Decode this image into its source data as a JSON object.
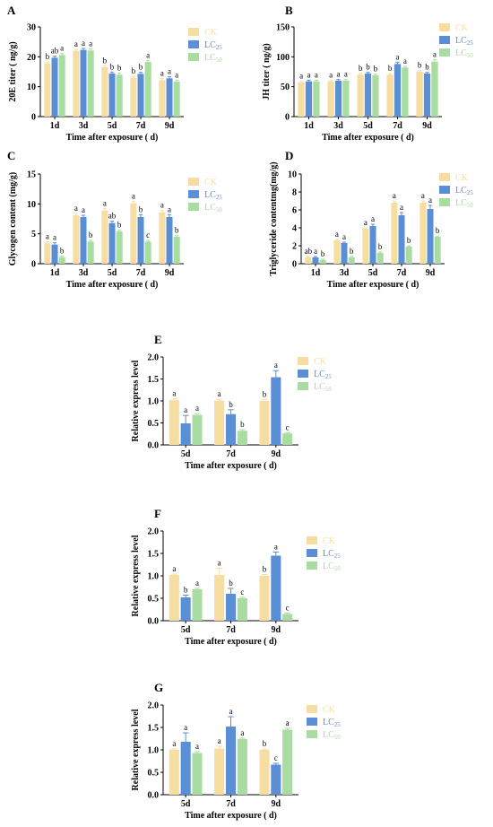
{
  "colors": {
    "CK": "#f6dda2",
    "LC25": "#5b8fd5",
    "LC50": "#a8dca0",
    "error": "#6a95cf"
  },
  "legend": [
    {
      "key": "CK",
      "base": "CK",
      "sub": ""
    },
    {
      "key": "LC25",
      "base": "LC",
      "sub": "25"
    },
    {
      "key": "LC50",
      "base": "LC",
      "sub": "50"
    }
  ],
  "chart_data": [
    {
      "panel": "A",
      "type": "bar",
      "ylabel": "20E titer ( ng/g)",
      "xlabel": "Time after exposure ( d)",
      "categories": [
        "1d",
        "3d",
        "5d",
        "7d",
        "9d"
      ],
      "ylim": [
        0,
        30
      ],
      "yticks": [
        0,
        10,
        20,
        30
      ],
      "series": [
        {
          "name": "CK",
          "values": [
            17.8,
            22.0,
            16.5,
            13.0,
            12.2
          ],
          "errors": [
            0.5,
            0.5,
            0.5,
            0.5,
            0.5
          ],
          "letters": [
            "b",
            "a",
            "b",
            "b",
            "a"
          ]
        },
        {
          "name": "LC25",
          "values": [
            19.7,
            22.3,
            14.4,
            14.3,
            12.8
          ],
          "errors": [
            0.5,
            0.5,
            0.5,
            0.5,
            0.5
          ],
          "letters": [
            "ab",
            "a",
            "b",
            "b",
            "a"
          ]
        },
        {
          "name": "LC50",
          "values": [
            20.6,
            22.1,
            14.0,
            18.3,
            11.7
          ],
          "errors": [
            0.5,
            0.5,
            0.5,
            0.5,
            0.5
          ],
          "letters": [
            "a",
            "a",
            "b",
            "a",
            "a"
          ]
        }
      ]
    },
    {
      "panel": "B",
      "type": "bar",
      "ylabel": "JH titer ( ng/g)",
      "xlabel": "Time after exposure ( d)",
      "categories": [
        "1d",
        "3d",
        "5d",
        "7d",
        "9d"
      ],
      "ylim": [
        0,
        150
      ],
      "yticks": [
        0,
        50,
        100,
        150
      ],
      "series": [
        {
          "name": "CK",
          "values": [
            57,
            59,
            70,
            70,
            75
          ],
          "errors": [
            2,
            2,
            2,
            2,
            2
          ],
          "letters": [
            "a",
            "a",
            "b",
            "b",
            "b"
          ]
        },
        {
          "name": "LC25",
          "values": [
            59,
            60,
            72,
            88,
            72
          ],
          "errors": [
            2,
            2,
            2,
            3,
            2
          ],
          "letters": [
            "a",
            "a",
            "b",
            "a",
            "b"
          ]
        },
        {
          "name": "LC50",
          "values": [
            59,
            60,
            69,
            82,
            92
          ],
          "errors": [
            2,
            2,
            2,
            2,
            3
          ],
          "letters": [
            "a",
            "a",
            "b",
            "a",
            "a"
          ]
        }
      ]
    },
    {
      "panel": "C",
      "type": "bar",
      "ylabel": "Glycogen content (mg/g)",
      "xlabel": "Time after exposure ( d)",
      "categories": [
        "1d",
        "3d",
        "5d",
        "7d",
        "9d"
      ],
      "ylim": [
        0,
        15
      ],
      "yticks": [
        0,
        5,
        10,
        15
      ],
      "series": [
        {
          "name": "CK",
          "values": [
            3.4,
            8.1,
            8.9,
            10.1,
            8.6
          ],
          "errors": [
            0.3,
            0.3,
            0.3,
            0.3,
            0.3
          ],
          "letters": [
            "a",
            "a",
            "a",
            "a",
            "a"
          ]
        },
        {
          "name": "LC25",
          "values": [
            3.2,
            7.8,
            6.8,
            7.8,
            7.8
          ],
          "errors": [
            0.3,
            0.3,
            0.3,
            0.4,
            0.4
          ],
          "letters": [
            "a",
            "a",
            "ab",
            "b",
            "a"
          ]
        },
        {
          "name": "LC50",
          "values": [
            1.1,
            3.7,
            5.4,
            3.7,
            4.5
          ],
          "errors": [
            0.2,
            0.2,
            0.2,
            0.2,
            0.2
          ],
          "letters": [
            "b",
            "b",
            "b",
            "c",
            "b"
          ]
        }
      ]
    },
    {
      "panel": "D",
      "type": "bar",
      "ylabel": "Triglyceride contentmg(mg/g)",
      "xlabel": "Time after exposure ( d)",
      "categories": [
        "1d",
        "3d",
        "5d",
        "7d",
        "9d"
      ],
      "ylim": [
        0,
        10
      ],
      "yticks": [
        0,
        2,
        4,
        6,
        8,
        10
      ],
      "series": [
        {
          "name": "CK",
          "values": [
            0.7,
            2.6,
            3.9,
            6.8,
            6.8
          ],
          "errors": [
            0.1,
            0.1,
            0.1,
            0.2,
            0.2
          ],
          "letters": [
            "ab",
            "a",
            "a",
            "a",
            "a"
          ]
        },
        {
          "name": "LC25",
          "values": [
            0.7,
            2.3,
            4.2,
            5.4,
            6.1
          ],
          "errors": [
            0.1,
            0.1,
            0.2,
            0.3,
            0.4
          ],
          "letters": [
            "a",
            "a",
            "a",
            "a",
            "a"
          ]
        },
        {
          "name": "LC50",
          "values": [
            0.4,
            0.7,
            1.2,
            1.9,
            3.0
          ],
          "errors": [
            0.1,
            0.1,
            0.1,
            0.1,
            0.1
          ],
          "letters": [
            "b",
            "b",
            "b",
            "b",
            "b"
          ]
        }
      ]
    },
    {
      "panel": "E",
      "type": "bar",
      "ylabel": "Relative express level",
      "xlabel": "Time after exposure ( d)",
      "categories": [
        "5d",
        "7d",
        "9d"
      ],
      "ylim": [
        0,
        2.0
      ],
      "yticks": [
        0.0,
        0.5,
        1.0,
        1.5,
        2.0
      ],
      "series": [
        {
          "name": "CK",
          "values": [
            1.02,
            1.01,
            1.0
          ],
          "errors": [
            0.03,
            0.03,
            0.03
          ],
          "letters": [
            "a",
            "a",
            "b"
          ]
        },
        {
          "name": "LC25",
          "values": [
            0.49,
            0.7,
            1.54
          ],
          "errors": [
            0.18,
            0.1,
            0.15
          ],
          "letters": [
            "a",
            "b",
            "a"
          ]
        },
        {
          "name": "LC50",
          "values": [
            0.68,
            0.32,
            0.26
          ],
          "errors": [
            0.03,
            0.03,
            0.02
          ],
          "letters": [
            "a",
            "b",
            "c"
          ]
        }
      ]
    },
    {
      "panel": "F",
      "type": "bar",
      "ylabel": "Relative express level",
      "xlabel": "Time after exposure ( d)",
      "categories": [
        "5d",
        "7d",
        "9d"
      ],
      "ylim": [
        0,
        2.0
      ],
      "yticks": [
        0.0,
        0.5,
        1.0,
        1.5,
        2.0
      ],
      "series": [
        {
          "name": "CK",
          "values": [
            1.02,
            1.02,
            1.0
          ],
          "errors": [
            0.02,
            0.15,
            0.03
          ],
          "letters": [
            "a",
            "a",
            "b"
          ]
        },
        {
          "name": "LC25",
          "values": [
            0.52,
            0.6,
            1.45
          ],
          "errors": [
            0.05,
            0.12,
            0.08
          ],
          "letters": [
            "b",
            "b",
            "a"
          ]
        },
        {
          "name": "LC50",
          "values": [
            0.7,
            0.5,
            0.15
          ],
          "errors": [
            0.02,
            0.02,
            0.02
          ],
          "letters": [
            "a",
            "c",
            "c"
          ]
        }
      ]
    },
    {
      "panel": "G",
      "type": "bar",
      "ylabel": "Relative express level",
      "xlabel": "Time after exposure ( d)",
      "categories": [
        "5d",
        "7d",
        "9d"
      ],
      "ylim": [
        0,
        2.0
      ],
      "yticks": [
        0.0,
        0.5,
        1.0,
        1.5,
        2.0
      ],
      "series": [
        {
          "name": "CK",
          "values": [
            1.0,
            1.03,
            1.0
          ],
          "errors": [
            0.02,
            0.05,
            0.02
          ],
          "letters": [
            "a",
            "a",
            "b"
          ]
        },
        {
          "name": "LC25",
          "values": [
            1.18,
            1.52,
            0.67
          ],
          "errors": [
            0.2,
            0.22,
            0.03
          ],
          "letters": [
            "a",
            "a",
            "c"
          ]
        },
        {
          "name": "LC50",
          "values": [
            0.93,
            1.24,
            1.45
          ],
          "errors": [
            0.03,
            0.02,
            0.03
          ],
          "letters": [
            "a",
            "a",
            "a"
          ]
        }
      ]
    }
  ]
}
